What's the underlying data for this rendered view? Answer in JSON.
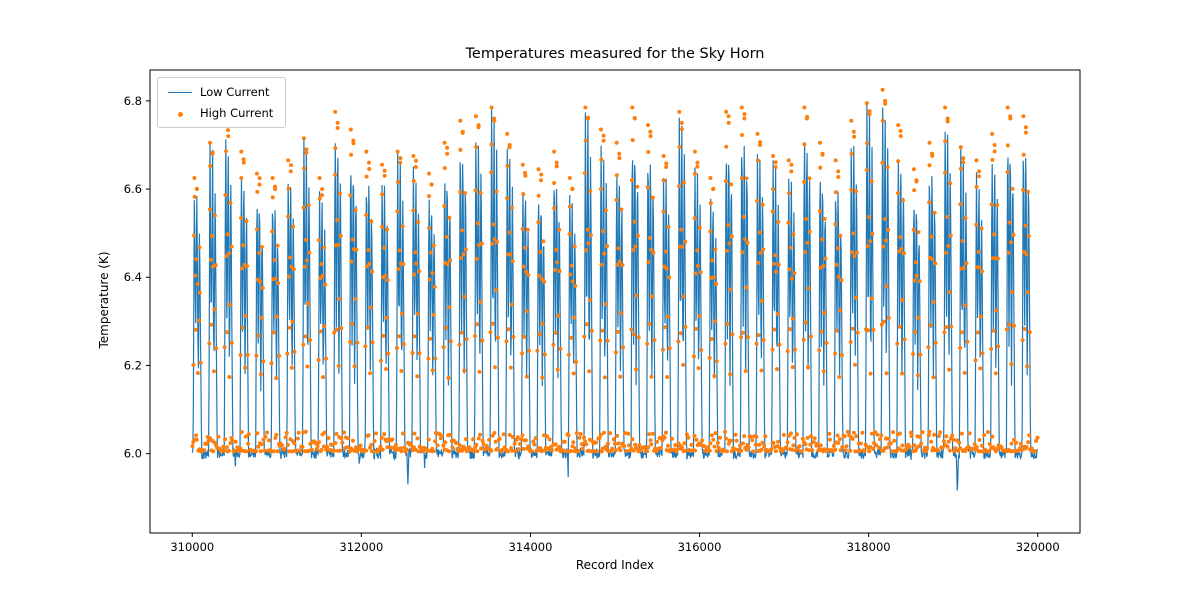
{
  "chart_data": {
    "type": "line+scatter",
    "title": "Temperatures measured for the Sky Horn",
    "xlabel": "Record Index",
    "ylabel": "Temperature (K)",
    "xlim": [
      309500,
      320500
    ],
    "ylim": [
      5.82,
      6.87
    ],
    "xticks": [
      310000,
      312000,
      314000,
      316000,
      318000,
      320000
    ],
    "xtick_labels": [
      "310000",
      "312000",
      "314000",
      "316000",
      "318000",
      "320000"
    ],
    "yticks": [
      6.0,
      6.2,
      6.4,
      6.6,
      6.8
    ],
    "ytick_labels": [
      "6.0",
      "6.2",
      "6.4",
      "6.6",
      "6.8"
    ],
    "grid": false,
    "x_data_range": [
      310000,
      320000
    ],
    "legend": {
      "position": "upper left",
      "entries": [
        {
          "label": "Low Current",
          "color": "#1f77b4",
          "marker": "line"
        },
        {
          "label": "High Current",
          "color": "#ff7f0e",
          "marker": "dot"
        }
      ]
    },
    "series_description": "Dense periodic thermal-cycle signal: baseline near 6.0 K with ~54 narrow spike clusters (period ~185 records) reaching 6.6-6.82 K; high-current scatter points track the same cycles with a baseline band at 6.0-6.05 K.",
    "baseline": {
      "level": 6.0,
      "noise": 0.012,
      "high_current_band": [
        6.005,
        6.05
      ]
    },
    "spike_width_records": 100,
    "spikes": [
      [
        310060,
        6.62
      ],
      [
        310245,
        6.7
      ],
      [
        310430,
        6.74
      ],
      [
        310615,
        6.68
      ],
      [
        310800,
        6.63
      ],
      [
        310985,
        6.62
      ],
      [
        311170,
        6.66
      ],
      [
        311355,
        6.71
      ],
      [
        311540,
        6.62
      ],
      [
        311725,
        6.77
      ],
      [
        311910,
        6.73
      ],
      [
        312095,
        6.68
      ],
      [
        312280,
        6.65
      ],
      [
        312465,
        6.68
      ],
      [
        312650,
        6.67
      ],
      [
        312835,
        6.63
      ],
      [
        313020,
        6.7
      ],
      [
        313205,
        6.75
      ],
      [
        313390,
        6.76
      ],
      [
        313575,
        6.78
      ],
      [
        313760,
        6.72
      ],
      [
        313945,
        6.65
      ],
      [
        314130,
        6.64
      ],
      [
        314315,
        6.68
      ],
      [
        314500,
        6.62
      ],
      [
        314685,
        6.78
      ],
      [
        314870,
        6.73
      ],
      [
        315055,
        6.7
      ],
      [
        315240,
        6.78
      ],
      [
        315425,
        6.74
      ],
      [
        315610,
        6.67
      ],
      [
        315795,
        6.77
      ],
      [
        315980,
        6.68
      ],
      [
        316165,
        6.62
      ],
      [
        316350,
        6.77
      ],
      [
        316535,
        6.78
      ],
      [
        316720,
        6.72
      ],
      [
        316905,
        6.67
      ],
      [
        317090,
        6.66
      ],
      [
        317275,
        6.78
      ],
      [
        317460,
        6.7
      ],
      [
        317645,
        6.66
      ],
      [
        317830,
        6.75
      ],
      [
        318015,
        6.79
      ],
      [
        318200,
        6.82
      ],
      [
        318385,
        6.74
      ],
      [
        318570,
        6.64
      ],
      [
        318755,
        6.7
      ],
      [
        318940,
        6.78
      ],
      [
        319125,
        6.69
      ],
      [
        319310,
        6.66
      ],
      [
        319495,
        6.72
      ],
      [
        319680,
        6.78
      ],
      [
        319865,
        6.76
      ]
    ],
    "dips": [
      [
        310400,
        5.87
      ],
      [
        312550,
        5.93
      ],
      [
        314450,
        5.92
      ],
      [
        314650,
        5.9
      ],
      [
        318600,
        5.88
      ],
      [
        319050,
        5.9
      ],
      [
        319700,
        5.93
      ]
    ],
    "line_color": "#1f77b4",
    "scatter_color": "#ff7f0e"
  }
}
